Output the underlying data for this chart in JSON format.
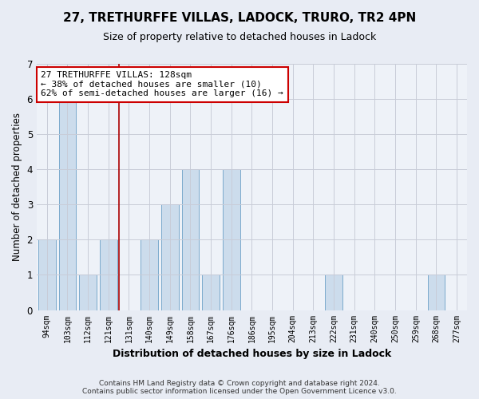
{
  "title": "27, TRETHURFFE VILLAS, LADOCK, TRURO, TR2 4PN",
  "subtitle": "Size of property relative to detached houses in Ladock",
  "xlabel": "Distribution of detached houses by size in Ladock",
  "ylabel": "Number of detached properties",
  "categories": [
    "94sqm",
    "103sqm",
    "112sqm",
    "121sqm",
    "131sqm",
    "140sqm",
    "149sqm",
    "158sqm",
    "167sqm",
    "176sqm",
    "186sqm",
    "195sqm",
    "204sqm",
    "213sqm",
    "222sqm",
    "231sqm",
    "240sqm",
    "250sqm",
    "259sqm",
    "268sqm",
    "277sqm"
  ],
  "values": [
    2,
    6,
    1,
    2,
    0,
    2,
    3,
    4,
    1,
    4,
    0,
    0,
    0,
    0,
    1,
    0,
    0,
    0,
    0,
    1,
    0
  ],
  "bar_color": "#ccdcec",
  "bar_edge_color": "#7aaacc",
  "vline_color": "#aa0000",
  "vline_x": 3.5,
  "ylim": [
    0,
    7
  ],
  "yticks": [
    0,
    1,
    2,
    3,
    4,
    5,
    6,
    7
  ],
  "annotation_text": "27 TRETHURFFE VILLAS: 128sqm\n← 38% of detached houses are smaller (10)\n62% of semi-detached houses are larger (16) →",
  "annotation_box_edge": "#cc0000",
  "footer1": "Contains HM Land Registry data © Crown copyright and database right 2024.",
  "footer2": "Contains public sector information licensed under the Open Government Licence v3.0.",
  "bg_color": "#e8ecf4",
  "plot_bg_color": "#eef2f8",
  "grid_color": "#c8ccd8"
}
